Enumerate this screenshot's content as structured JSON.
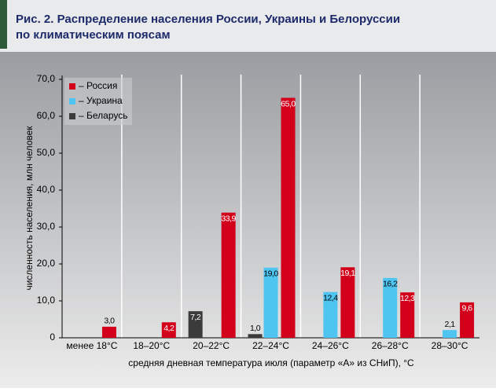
{
  "chart_data": {
    "type": "bar",
    "title": "Рис. 2. Распределение населения России, Украины и Белоруссии",
    "subtitle": "по климатическим поясам",
    "y_label": "численность населения, млн человек",
    "x_label": "средняя дневная температура июля (параметр «А» из СНиП), °С",
    "categories": [
      "менее 18°С",
      "18–20°С",
      "20–22°С",
      "22–24°С",
      "24–26°С",
      "26–28°С",
      "28–30°С"
    ],
    "series": [
      {
        "name": "– Беларусь",
        "color": "#3b3b3b",
        "values": [
          null,
          null,
          7.2,
          1.0,
          null,
          null,
          null
        ],
        "value_labels": [
          null,
          null,
          "7,2",
          "1,0",
          null,
          null,
          null
        ]
      },
      {
        "name": "– Украина",
        "color": "#4ec4f0",
        "values": [
          null,
          null,
          null,
          19.0,
          12.4,
          16.2,
          2.1
        ],
        "value_labels": [
          null,
          null,
          null,
          "19,0",
          "12,4",
          "16,2",
          "2,1"
        ]
      },
      {
        "name": "– Россия",
        "color": "#d3001c",
        "values": [
          3.0,
          4.2,
          33.9,
          65.0,
          19.1,
          12.3,
          9.6
        ],
        "value_labels": [
          "3,0",
          "4,2",
          "33,9",
          "65,0",
          "19,1",
          "12,3",
          "9,6"
        ]
      }
    ],
    "legend_order": [
      2,
      1,
      0
    ],
    "ylim": [
      0,
      70
    ],
    "yticks": [
      0,
      {
        "value": 10,
        "label": "10,0"
      },
      {
        "value": 20,
        "label": "20,0"
      },
      {
        "value": 30,
        "label": "30,0"
      },
      {
        "value": 40,
        "label": "40,0"
      },
      {
        "value": 50,
        "label": "50,0"
      },
      {
        "value": 60,
        "label": "60,0"
      },
      {
        "value": 70,
        "label": "70,0"
      }
    ],
    "legend_position": "upper left"
  }
}
